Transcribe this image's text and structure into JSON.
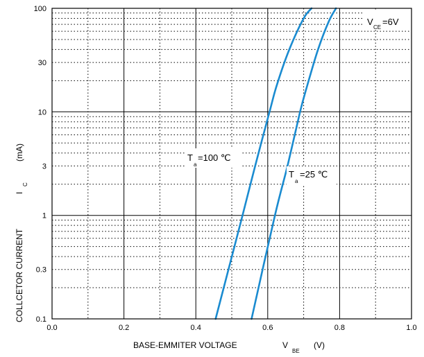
{
  "chart_data": {
    "type": "line",
    "x_scale": "linear",
    "y_scale": "log",
    "xlim": [
      0.0,
      1.0
    ],
    "ylim": [
      0.1,
      100
    ],
    "x_ticks": [
      "0.0",
      "0.2",
      "0.4",
      "0.6",
      "0.8",
      "1.0"
    ],
    "y_ticks": [
      {
        "value": 0.1,
        "label": "0.1"
      },
      {
        "value": 0.3,
        "label": "0.3"
      },
      {
        "value": 1,
        "label": "1"
      },
      {
        "value": 3,
        "label": "3"
      },
      {
        "value": 10,
        "label": "10"
      },
      {
        "value": 30,
        "label": "30"
      },
      {
        "value": 100,
        "label": "100"
      }
    ],
    "grid": "major solid, minor dotted",
    "xlabel": {
      "main": "BASE-EMMITER VOLTAGE",
      "symbol": "V",
      "subscript": "BE",
      "unit": "(V)"
    },
    "ylabel": {
      "main": "COLLCETOR CURRENT",
      "symbol": "I",
      "subscript": "C",
      "unit": "(mA)"
    },
    "condition": {
      "symbol": "V",
      "subscript": "CE",
      "value": "=6V"
    },
    "series": [
      {
        "label": {
          "symbol": "T",
          "subscript": "a",
          "value": "=100 ℃"
        },
        "color": "#1a8bd0",
        "points": [
          [
            0.455,
            0.1
          ],
          [
            0.53,
            1.0
          ],
          [
            0.565,
            3.0
          ],
          [
            0.605,
            10.0
          ],
          [
            0.625,
            18.0
          ],
          [
            0.66,
            40.0
          ],
          [
            0.7,
            80.0
          ],
          [
            0.722,
            100.0
          ]
        ]
      },
      {
        "label": {
          "symbol": "T",
          "subscript": "a",
          "value": "=25 ℃"
        },
        "color": "#1a8bd0",
        "points": [
          [
            0.555,
            0.1
          ],
          [
            0.62,
            1.0
          ],
          [
            0.655,
            3.0
          ],
          [
            0.69,
            10.0
          ],
          [
            0.71,
            18.0
          ],
          [
            0.74,
            40.0
          ],
          [
            0.77,
            75.0
          ],
          [
            0.79,
            100.0
          ]
        ]
      }
    ]
  }
}
